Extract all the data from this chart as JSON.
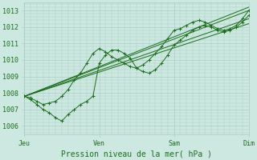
{
  "title": "Pression niveau de la mer( hPa )",
  "ylim": [
    1005.5,
    1013.5
  ],
  "yticks": [
    1006,
    1007,
    1008,
    1009,
    1010,
    1011,
    1012,
    1013
  ],
  "xtick_labels": [
    "Jeu",
    "Ven",
    "Sam",
    "Dim"
  ],
  "xtick_positions": [
    0,
    96,
    192,
    288
  ],
  "x_total": 288,
  "bg_color": "#cce8e0",
  "grid_color": "#aaccc4",
  "line_color": "#1a6e1a",
  "figsize": [
    3.2,
    2.0
  ],
  "dpi": 100,
  "lines_with_markers": [
    [
      0,
      1007.8,
      8,
      1007.7,
      16,
      1007.5,
      24,
      1007.3,
      32,
      1007.4,
      40,
      1007.5,
      48,
      1007.8,
      56,
      1008.2,
      64,
      1008.8,
      72,
      1009.2,
      80,
      1009.8,
      88,
      1010.4,
      96,
      1010.7,
      104,
      1010.5,
      112,
      1010.2,
      120,
      1010.0,
      128,
      1009.8,
      136,
      1009.6,
      144,
      1009.5,
      152,
      1009.7,
      160,
      1010.0,
      168,
      1010.4,
      176,
      1010.8,
      184,
      1011.3,
      192,
      1011.8,
      200,
      1011.9,
      208,
      1012.1,
      216,
      1012.3,
      224,
      1012.4,
      232,
      1012.3,
      240,
      1012.1,
      248,
      1011.9,
      256,
      1011.8,
      264,
      1011.9,
      272,
      1012.1,
      280,
      1012.5,
      288,
      1013.0
    ],
    [
      0,
      1007.8,
      8,
      1007.6,
      16,
      1007.3,
      24,
      1007.0,
      32,
      1006.8,
      40,
      1006.5,
      48,
      1006.3,
      56,
      1006.7,
      64,
      1007.0,
      72,
      1007.3,
      80,
      1007.5,
      88,
      1007.8,
      96,
      1009.8,
      104,
      1010.3,
      112,
      1010.6,
      120,
      1010.6,
      128,
      1010.4,
      136,
      1010.1,
      144,
      1009.5,
      152,
      1009.3,
      160,
      1009.2,
      168,
      1009.4,
      176,
      1009.8,
      184,
      1010.3,
      192,
      1010.9,
      200,
      1011.2,
      208,
      1011.5,
      216,
      1011.8,
      224,
      1012.0,
      232,
      1012.1,
      240,
      1012.0,
      248,
      1011.8,
      256,
      1011.7,
      264,
      1011.8,
      272,
      1012.0,
      280,
      1012.3,
      288,
      1012.7
    ]
  ],
  "lines_straight": [
    [
      0,
      1007.8,
      288,
      1013.2
    ],
    [
      0,
      1007.8,
      288,
      1012.5
    ],
    [
      0,
      1007.8,
      288,
      1012.2
    ],
    [
      0,
      1007.8,
      288,
      1013.0
    ]
  ]
}
